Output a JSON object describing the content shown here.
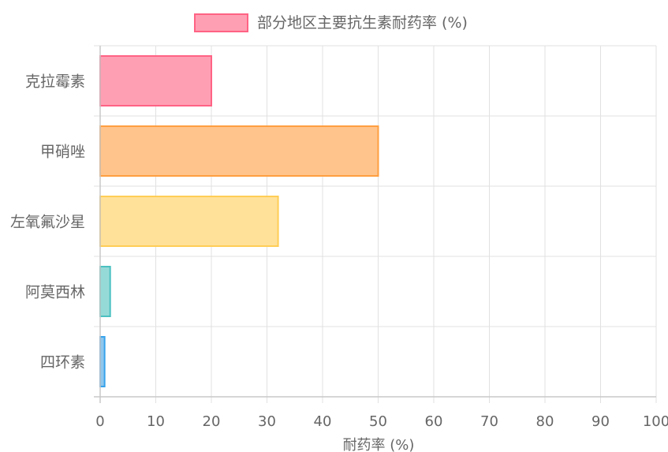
{
  "chart_data": {
    "type": "bar",
    "orientation": "horizontal",
    "categories": [
      "克拉霉素",
      "甲硝唑",
      "左氧氟沙星",
      "阿莫西林",
      "四环素"
    ],
    "series": [
      {
        "name": "部分地区主要抗生素耐药率 (%)",
        "values": [
          20,
          50,
          32,
          1.8,
          0.8
        ],
        "fill_colors": [
          "#ff9fb4",
          "#ffc48c",
          "#ffe199",
          "#96dad7",
          "#8fc6ec"
        ],
        "stroke_colors": [
          "#ff6384",
          "#ff9f40",
          "#ffcd56",
          "#4bc0c0",
          "#36a2eb"
        ]
      }
    ],
    "xlabel": "耐药率 (%)",
    "ylabel": "",
    "xlim": [
      0,
      100
    ],
    "x_ticks": [
      0,
      10,
      20,
      30,
      40,
      50,
      60,
      70,
      80,
      90,
      100
    ],
    "grid": true,
    "legend": {
      "position": "top",
      "label": "部分地区主要抗生素耐药率 (%)",
      "swatch_fill": "#ff9fb4",
      "swatch_stroke": "#ff6384"
    }
  },
  "colors": {
    "grid": "#e1e1e1",
    "axis": "#c8c8c8",
    "text": "#666666"
  }
}
